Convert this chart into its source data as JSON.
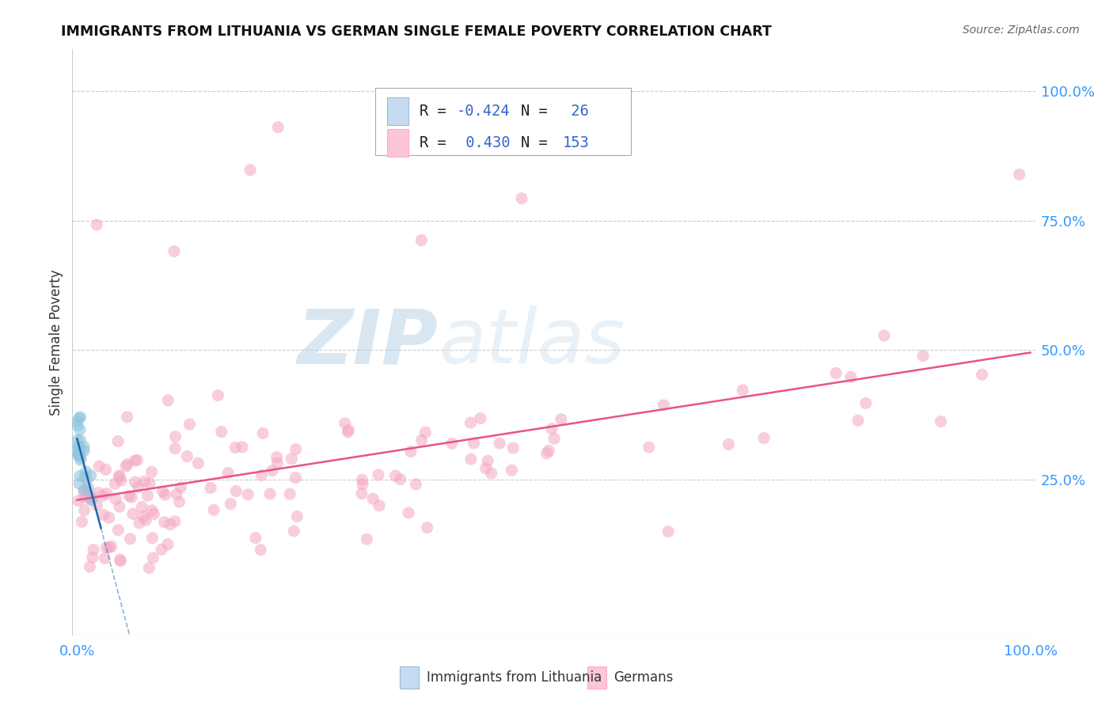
{
  "title": "IMMIGRANTS FROM LITHUANIA VS GERMAN SINGLE FEMALE POVERTY CORRELATION CHART",
  "source": "Source: ZipAtlas.com",
  "ylabel": "Single Female Poverty",
  "y_tick_vals": [
    0.25,
    0.5,
    0.75,
    1.0
  ],
  "y_tick_labels": [
    "25.0%",
    "50.0%",
    "75.0%",
    "100.0%"
  ],
  "x_tick_vals": [
    0.0,
    1.0
  ],
  "x_tick_labels": [
    "0.0%",
    "100.0%"
  ],
  "blue_color": "#92c5de",
  "pink_color": "#f4a6c0",
  "blue_fill": "#c6dbef",
  "pink_fill": "#fcc5d8",
  "trend_blue": "#2166ac",
  "trend_pink": "#e8538a",
  "watermark_zip": "ZIP",
  "watermark_atlas": "atlas",
  "legend_label1": "Immigrants from Lithuania",
  "legend_label2": "Germans",
  "xlim": [
    -0.005,
    1.005
  ],
  "ylim": [
    -0.05,
    1.08
  ],
  "blue_r": "-0.424",
  "blue_n": "26",
  "pink_r": "0.430",
  "pink_n": "153"
}
